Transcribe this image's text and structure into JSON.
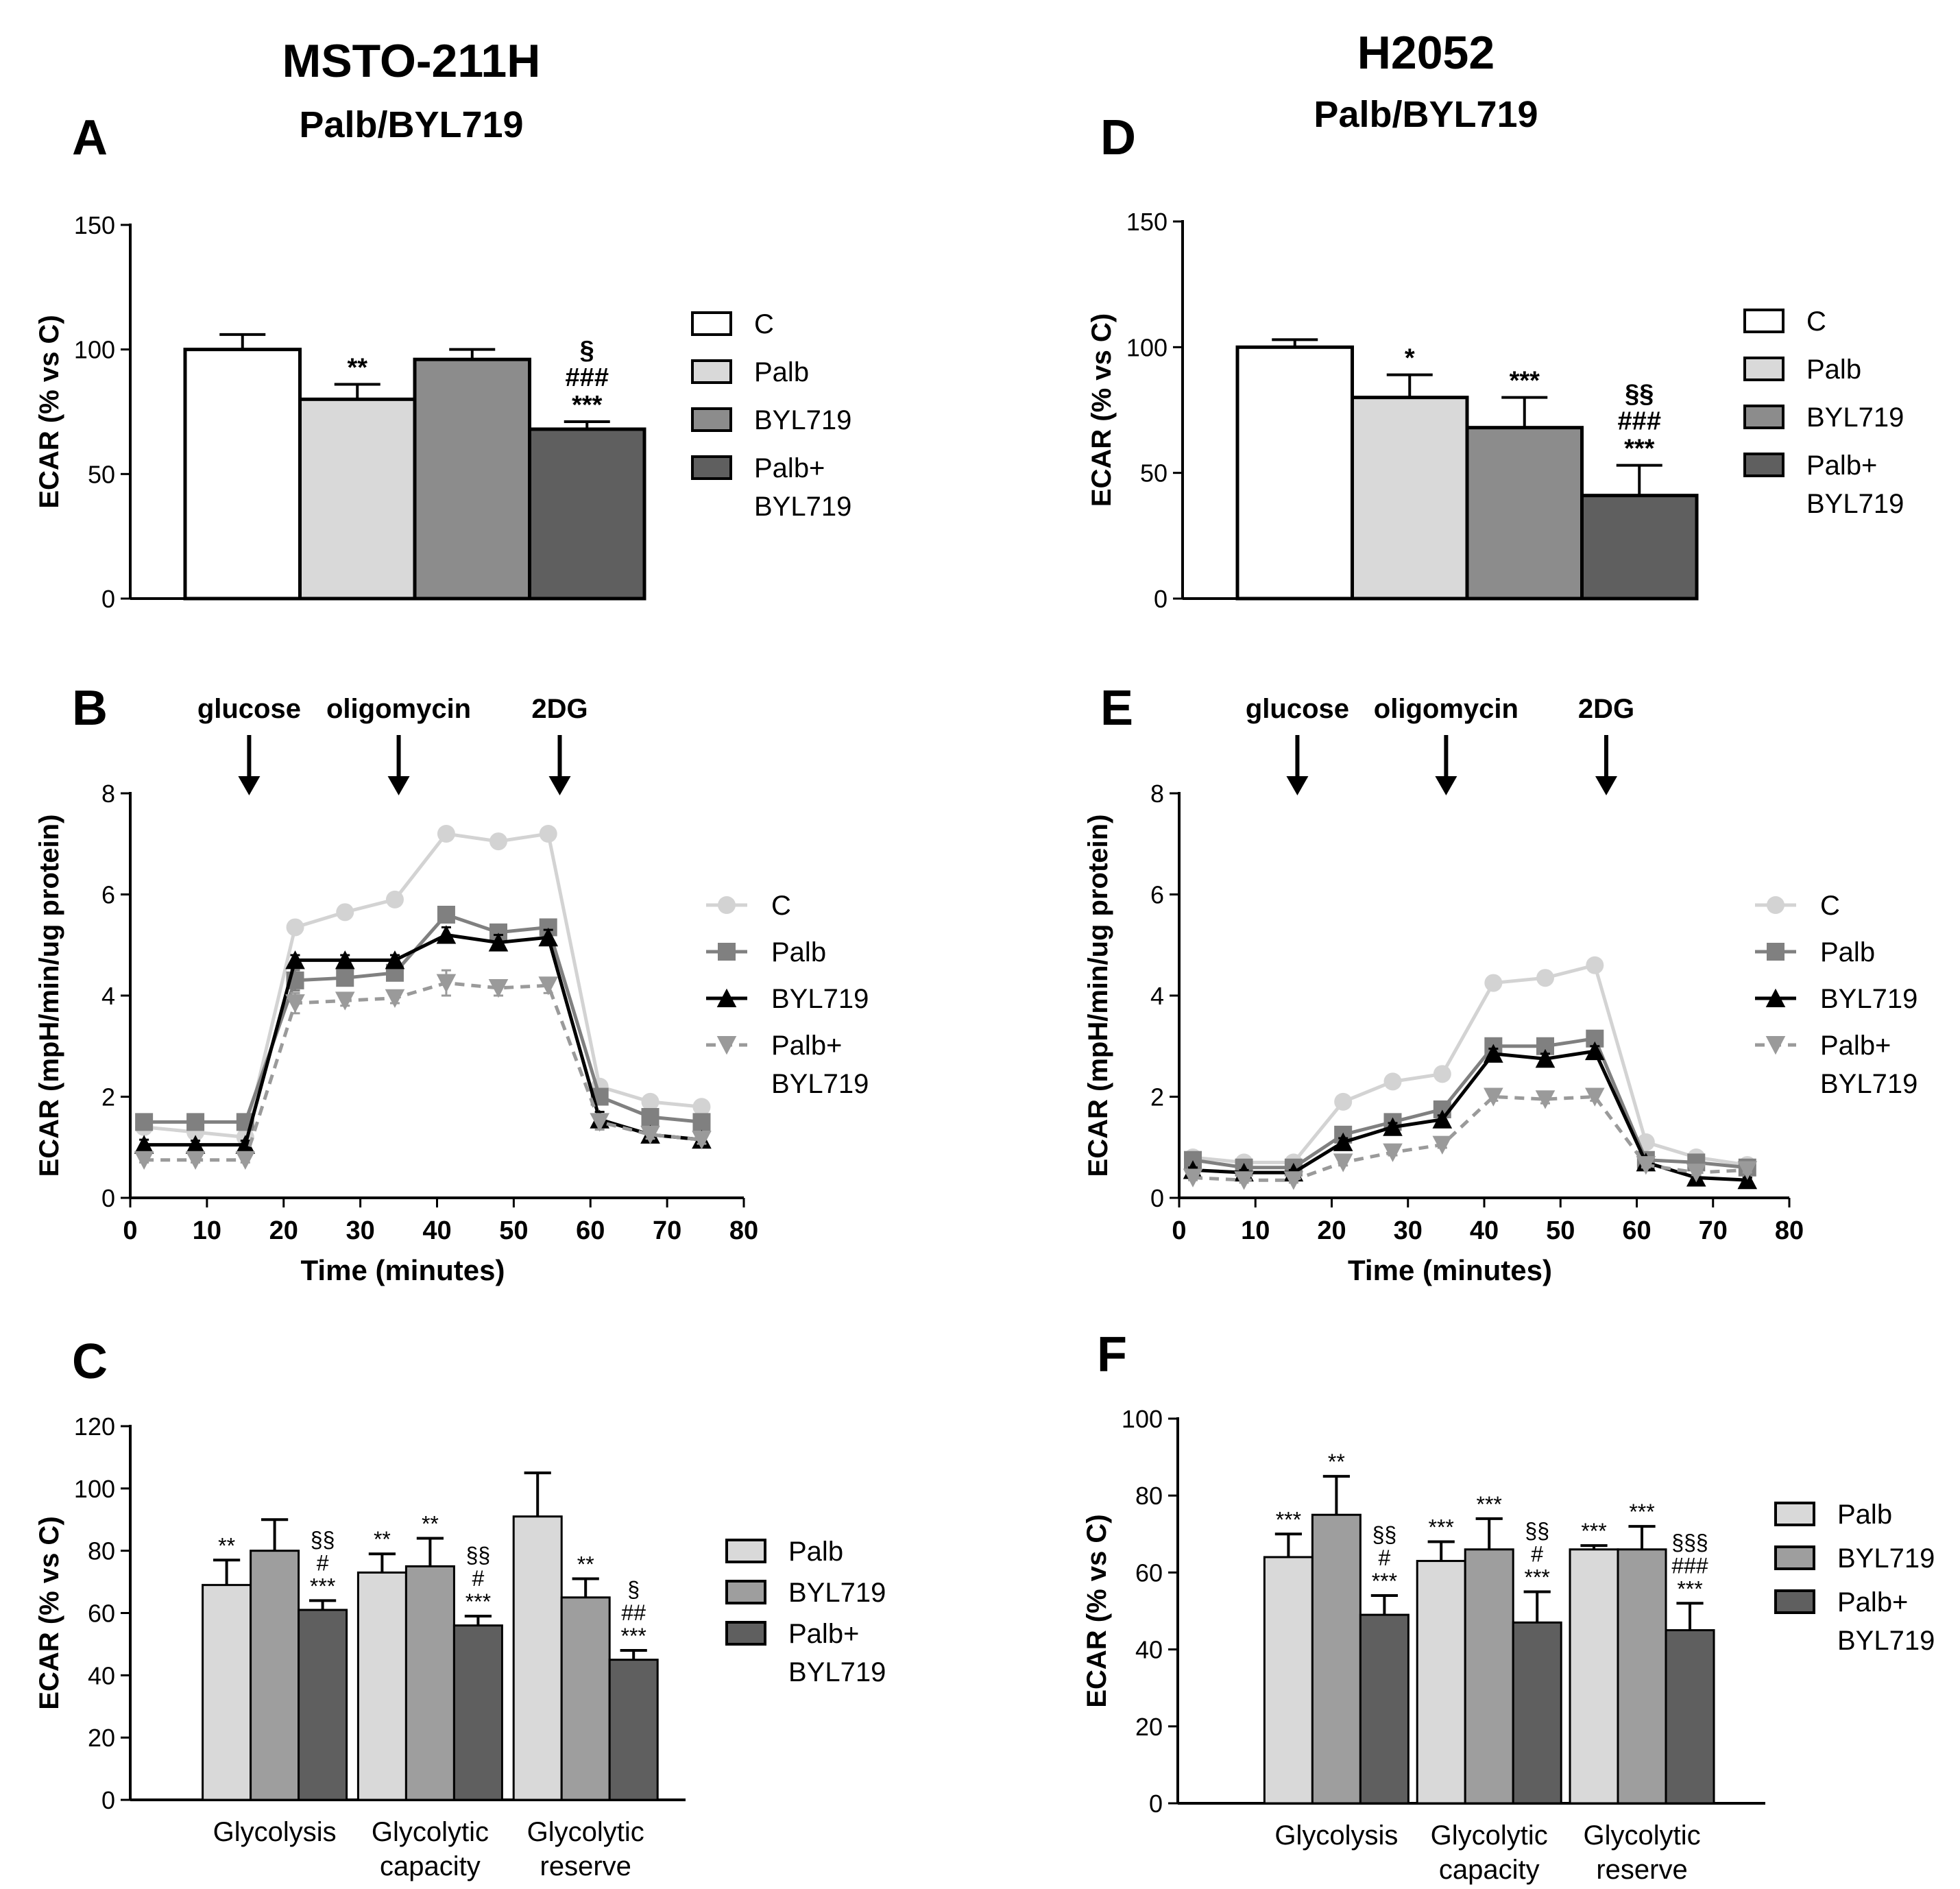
{
  "columns": [
    {
      "cell_line": "MSTO-211H",
      "treatment": "Palb/BYL719"
    },
    {
      "cell_line": "H2052",
      "treatment": "Palb/BYL719"
    }
  ],
  "panels": [
    {
      "letter": "A",
      "kind": "bar4",
      "ylabel": "ECAR (% vs C)",
      "ylim": [
        0,
        150
      ],
      "yticks": [
        "0",
        "50",
        "100",
        "150"
      ],
      "legend": [
        "C",
        "Palb",
        "BYL719",
        "Palb+\nBYL719"
      ],
      "colors": [
        "#ffffff",
        "#d9d9d9",
        "#8c8c8c",
        "#5f5f5f"
      ]
    },
    {
      "letter": "B",
      "kind": "line",
      "ylabel": "ECAR (mpH/min/ug protein)",
      "xlabel": "Time (minutes)",
      "ylim": [
        0,
        8
      ],
      "yticks": [
        "0",
        "2",
        "4",
        "6",
        "8"
      ],
      "xlim": [
        0,
        80
      ],
      "xticks": [
        "0",
        "10",
        "20",
        "30",
        "40",
        "50",
        "60",
        "70",
        "80"
      ],
      "injections": [
        {
          "label": "glucose",
          "x": 15.5
        },
        {
          "label": "oligomycin",
          "x": 35
        },
        {
          "label": "2DG",
          "x": 56
        }
      ],
      "legend": [
        "C",
        "Palb",
        "BYL719",
        "Palb+\nBYL719"
      ]
    },
    {
      "letter": "C",
      "kind": "bar3",
      "ylabel": "ECAR (% vs C)",
      "ylim": [
        0,
        120
      ],
      "yticks": [
        "0",
        "20",
        "40",
        "60",
        "80",
        "100",
        "120"
      ],
      "groups": [
        "Glycolysis",
        "Glycolytic\ncapacity",
        "Glycolytic\nreserve"
      ],
      "legend": [
        "Palb",
        "BYL719",
        "Palb+\nBYL719"
      ],
      "colors": [
        "#d9d9d9",
        "#9e9e9e",
        "#5f5f5f"
      ]
    },
    {
      "letter": "D",
      "kind": "bar4",
      "ylabel": "ECAR (% vs C)",
      "ylim": [
        0,
        150
      ],
      "yticks": [
        "0",
        "50",
        "100",
        "150"
      ],
      "legend": [
        "C",
        "Palb",
        "BYL719",
        "Palb+\nBYL719"
      ],
      "colors": [
        "#ffffff",
        "#d9d9d9",
        "#8c8c8c",
        "#5f5f5f"
      ]
    },
    {
      "letter": "E",
      "kind": "line",
      "ylabel": "ECAR (mpH/min/ug protein)",
      "xlabel": "Time (minutes)",
      "ylim": [
        0,
        8
      ],
      "yticks": [
        "0",
        "2",
        "4",
        "6",
        "8"
      ],
      "xlim": [
        0,
        80
      ],
      "xticks": [
        "0",
        "10",
        "20",
        "30",
        "40",
        "50",
        "60",
        "70",
        "80"
      ],
      "injections": [
        {
          "label": "glucose",
          "x": 15.5
        },
        {
          "label": "oligomycin",
          "x": 35
        },
        {
          "label": "2DG",
          "x": 56
        }
      ],
      "legend": [
        "C",
        "Palb",
        "BYL719",
        "Palb+\nBYL719"
      ]
    },
    {
      "letter": "F",
      "kind": "bar3",
      "ylabel": "ECAR (% vs C)",
      "ylim": [
        0,
        100
      ],
      "yticks": [
        "0",
        "20",
        "40",
        "60",
        "80",
        "100"
      ],
      "groups": [
        "Glycolysis",
        "Glycolytic\ncapacity",
        "Glycolytic\nreserve"
      ],
      "legend": [
        "Palb",
        "BYL719",
        "Palb+\nBYL719"
      ],
      "colors": [
        "#d9d9d9",
        "#9e9e9e",
        "#5f5f5f"
      ]
    }
  ],
  "chart_data": [
    {
      "panel": "A",
      "type": "bar",
      "title": "MSTO-211H Palb/BYL719",
      "ylabel": "ECAR (% vs C)",
      "ylim": [
        0,
        150
      ],
      "categories": [
        "C",
        "Palb",
        "BYL719",
        "Palb+BYL719"
      ],
      "values": [
        100,
        80,
        96,
        68
      ],
      "errors": [
        6,
        6,
        4,
        3
      ],
      "annotations": [
        "",
        "**",
        "",
        "§\n###\n***"
      ]
    },
    {
      "panel": "B",
      "type": "line",
      "xlabel": "Time (minutes)",
      "ylabel": "ECAR (mpH/min/ug protein)",
      "xlim": [
        0,
        80
      ],
      "ylim": [
        0,
        8
      ],
      "x": [
        1.8,
        8.5,
        15,
        21.5,
        28,
        34.5,
        41.2,
        48,
        54.5,
        61.2,
        67.8,
        74.5
      ],
      "series": [
        {
          "name": "C",
          "values": [
            1.4,
            1.3,
            1.2,
            5.35,
            5.65,
            5.9,
            7.2,
            7.05,
            7.2,
            2.2,
            1.9,
            1.8
          ],
          "errors": [
            0.05,
            0.05,
            0.05,
            0.08,
            0.08,
            0.08,
            0.1,
            0.1,
            0.1,
            0.08,
            0.06,
            0.06
          ],
          "color": "#d3d3d3",
          "marker": "circle",
          "dash": false
        },
        {
          "name": "Palb",
          "values": [
            1.5,
            1.5,
            1.5,
            4.3,
            4.35,
            4.45,
            5.6,
            5.25,
            5.35,
            2.0,
            1.6,
            1.5
          ],
          "errors": [
            0.08,
            0.08,
            0.08,
            0.2,
            0.15,
            0.15,
            0.12,
            0.12,
            0.12,
            0.12,
            0.08,
            0.08
          ],
          "color": "#808080",
          "marker": "square",
          "dash": false
        },
        {
          "name": "BYL719",
          "values": [
            1.05,
            1.05,
            1.05,
            4.7,
            4.7,
            4.7,
            5.2,
            5.05,
            5.15,
            1.55,
            1.25,
            1.15
          ],
          "errors": [
            0.1,
            0.08,
            0.08,
            0.1,
            0.1,
            0.1,
            0.15,
            0.15,
            0.15,
            0.15,
            0.08,
            0.08
          ],
          "color": "#000000",
          "marker": "triangle",
          "dash": false
        },
        {
          "name": "Palb+BYL719",
          "values": [
            0.75,
            0.75,
            0.75,
            3.85,
            3.9,
            3.95,
            4.25,
            4.15,
            4.2,
            1.5,
            1.25,
            1.15
          ],
          "errors": [
            0.05,
            0.05,
            0.05,
            0.2,
            0.1,
            0.1,
            0.25,
            0.15,
            0.15,
            0.15,
            0.08,
            0.08
          ],
          "color": "#9a9a9a",
          "marker": "triangle-down",
          "dash": true
        }
      ],
      "injections": [
        "glucose",
        "oligomycin",
        "2DG"
      ]
    },
    {
      "panel": "C",
      "type": "bar",
      "ylabel": "ECAR (% vs C)",
      "ylim": [
        0,
        120
      ],
      "categories": [
        "Glycolysis",
        "Glycolytic capacity",
        "Glycolytic reserve"
      ],
      "series": [
        {
          "name": "Palb",
          "values": [
            69,
            73,
            91
          ],
          "errors": [
            8,
            6,
            14
          ],
          "annotations": [
            "**",
            "**",
            ""
          ]
        },
        {
          "name": "BYL719",
          "values": [
            80,
            75,
            65
          ],
          "errors": [
            10,
            9,
            6
          ],
          "annotations": [
            "",
            "**",
            "**"
          ]
        },
        {
          "name": "Palb+BYL719",
          "values": [
            61,
            56,
            45
          ],
          "errors": [
            3,
            3,
            3
          ],
          "annotations": [
            "§§\n#\n***",
            "§§\n#\n***",
            "§\n##\n***"
          ]
        }
      ]
    },
    {
      "panel": "D",
      "type": "bar",
      "title": "H2052 Palb/BYL719",
      "ylabel": "ECAR (% vs C)",
      "ylim": [
        0,
        150
      ],
      "categories": [
        "C",
        "Palb",
        "BYL719",
        "Palb+BYL719"
      ],
      "values": [
        100,
        80,
        68,
        41
      ],
      "errors": [
        3,
        9,
        12,
        12
      ],
      "annotations": [
        "",
        "*",
        "***",
        "§§\n###\n***"
      ]
    },
    {
      "panel": "E",
      "type": "line",
      "xlabel": "Time (minutes)",
      "ylabel": "ECAR (mpH/min/ug protein)",
      "xlim": [
        0,
        80
      ],
      "ylim": [
        0,
        8
      ],
      "x": [
        1.8,
        8.5,
        15,
        21.5,
        28,
        34.5,
        41.2,
        48,
        54.5,
        61.2,
        67.8,
        74.5
      ],
      "series": [
        {
          "name": "C",
          "values": [
            0.8,
            0.7,
            0.7,
            1.9,
            2.3,
            2.45,
            4.25,
            4.35,
            4.6,
            1.1,
            0.8,
            0.65
          ],
          "errors": [
            0.05,
            0.05,
            0.05,
            0.06,
            0.06,
            0.06,
            0.08,
            0.08,
            0.08,
            0.05,
            0.05,
            0.05
          ],
          "color": "#d3d3d3",
          "marker": "circle",
          "dash": false
        },
        {
          "name": "Palb",
          "values": [
            0.75,
            0.6,
            0.6,
            1.25,
            1.5,
            1.75,
            3.0,
            3.0,
            3.15,
            0.75,
            0.7,
            0.6
          ],
          "errors": [
            0.05,
            0.05,
            0.05,
            0.08,
            0.08,
            0.08,
            0.1,
            0.1,
            0.1,
            0.05,
            0.05,
            0.05
          ],
          "color": "#808080",
          "marker": "square",
          "dash": false
        },
        {
          "name": "BYL719",
          "values": [
            0.55,
            0.5,
            0.5,
            1.1,
            1.4,
            1.55,
            2.85,
            2.75,
            2.9,
            0.7,
            0.4,
            0.35
          ],
          "errors": [
            0.05,
            0.05,
            0.05,
            0.08,
            0.08,
            0.08,
            0.1,
            0.1,
            0.1,
            0.05,
            0.05,
            0.05
          ],
          "color": "#000000",
          "marker": "triangle",
          "dash": false
        },
        {
          "name": "Palb+BYL719",
          "values": [
            0.4,
            0.35,
            0.35,
            0.7,
            0.9,
            1.05,
            2.0,
            1.95,
            2.0,
            0.65,
            0.5,
            0.55
          ],
          "errors": [
            0.05,
            0.05,
            0.05,
            0.06,
            0.06,
            0.06,
            0.08,
            0.08,
            0.08,
            0.05,
            0.05,
            0.05
          ],
          "color": "#9a9a9a",
          "marker": "triangle-down",
          "dash": true
        }
      ],
      "injections": [
        "glucose",
        "oligomycin",
        "2DG"
      ]
    },
    {
      "panel": "F",
      "type": "bar",
      "ylabel": "ECAR (% vs C)",
      "ylim": [
        0,
        100
      ],
      "categories": [
        "Glycolysis",
        "Glycolytic capacity",
        "Glycolytic reserve"
      ],
      "series": [
        {
          "name": "Palb",
          "values": [
            64,
            63,
            66
          ],
          "errors": [
            6,
            5,
            1
          ],
          "annotations": [
            "***",
            "***",
            "***"
          ]
        },
        {
          "name": "BYL719",
          "values": [
            75,
            66,
            66
          ],
          "errors": [
            10,
            8,
            6
          ],
          "annotations": [
            "**",
            "***",
            "***"
          ]
        },
        {
          "name": "Palb+BYL719",
          "values": [
            49,
            47,
            45
          ],
          "errors": [
            5,
            8,
            7
          ],
          "annotations": [
            "§§\n#\n***",
            "§§\n#\n***",
            "§§§\n###\n***"
          ]
        }
      ]
    }
  ]
}
